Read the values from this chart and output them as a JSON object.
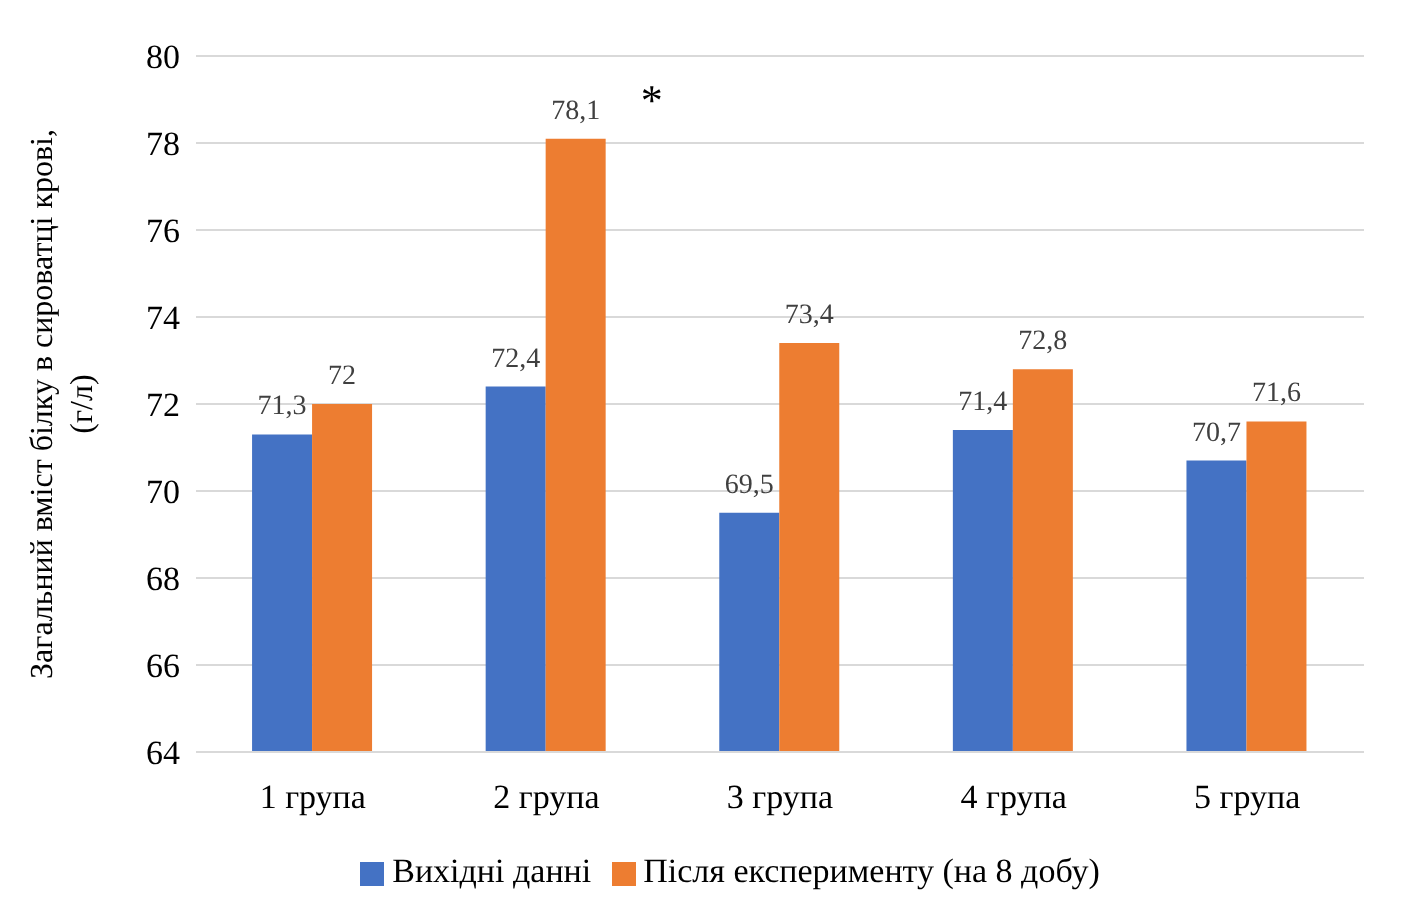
{
  "chart_data": {
    "type": "bar",
    "ylabel": "Загальний вміст білку в сироватці крові, (г/л)",
    "categories": [
      "1 група",
      "2 група",
      "3 група",
      "4 група",
      "5 група"
    ],
    "series": [
      {
        "name": "Вихідні данні",
        "color": "#4472c4",
        "values": [
          71.3,
          72.4,
          69.5,
          71.4,
          70.7
        ],
        "value_labels": [
          "71,3",
          "72,4",
          "69,5",
          "71,4",
          "70,7"
        ]
      },
      {
        "name": "Після експерименту (на 8 добу)",
        "color": "#ed7d31",
        "values": [
          72,
          78.1,
          73.4,
          72.8,
          71.6
        ],
        "value_labels": [
          "72",
          "78,1",
          "73,4",
          "72,8",
          "71,6"
        ]
      }
    ],
    "ylim": [
      64,
      80
    ],
    "yticks": [
      64,
      66,
      68,
      70,
      72,
      74,
      76,
      78,
      80
    ],
    "grid": "y",
    "legend": "bottom",
    "annotations": [
      {
        "text": "*",
        "x": "2 група",
        "y": 78.1
      }
    ]
  }
}
